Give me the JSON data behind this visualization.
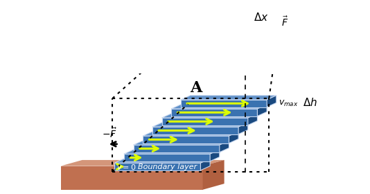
{
  "fig_width": 5.34,
  "fig_height": 2.8,
  "dpi": 100,
  "bg_color": "#ffffff",
  "ground_top_color": "#d4967a",
  "ground_front_color": "#c07050",
  "ground_side_color": "#b06040",
  "layer_face_color": "#3a72b0",
  "layer_side_color": "#1a4a80",
  "layer_top_color": "#6090c8",
  "layer_edge_color": "#c8d8f0",
  "n_layers": 8,
  "arrow_color": "#ddff00",
  "annotation_color": "#111111"
}
